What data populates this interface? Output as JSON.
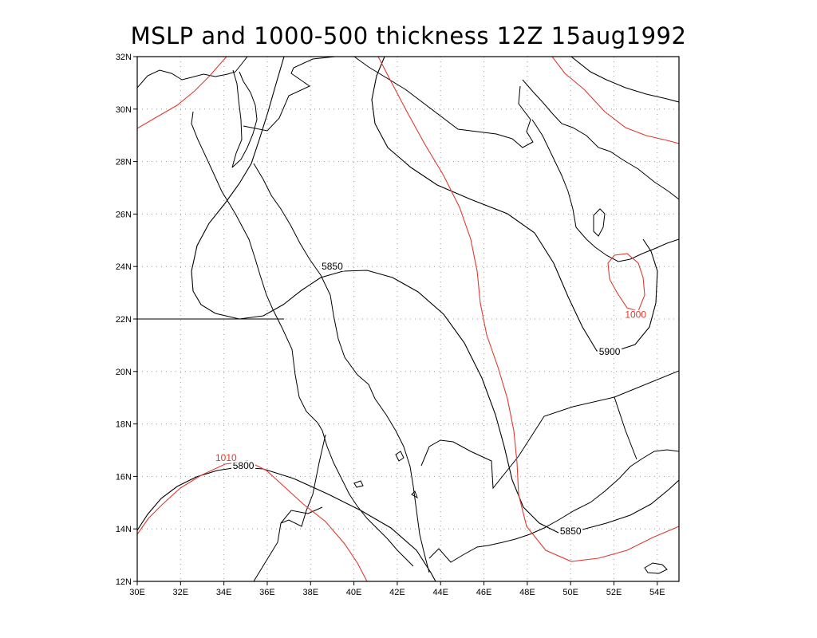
{
  "title": "MSLP and 1000-500 thickness 12Z 15aug1992",
  "map": {
    "lon_range": [
      30,
      55
    ],
    "lat_range": [
      12,
      32
    ],
    "lon_ticks": [
      {
        "v": 30,
        "label": "30E"
      },
      {
        "v": 32,
        "label": "32E"
      },
      {
        "v": 34,
        "label": "34E"
      },
      {
        "v": 36,
        "label": "36E"
      },
      {
        "v": 38,
        "label": "38E"
      },
      {
        "v": 40,
        "label": "40E"
      },
      {
        "v": 42,
        "label": "42E"
      },
      {
        "v": 44,
        "label": "44E"
      },
      {
        "v": 46,
        "label": "46E"
      },
      {
        "v": 48,
        "label": "48E"
      },
      {
        "v": 50,
        "label": "50E"
      },
      {
        "v": 52,
        "label": "52E"
      },
      {
        "v": 54,
        "label": "54E"
      }
    ],
    "lat_ticks": [
      {
        "v": 12,
        "label": "12N"
      },
      {
        "v": 14,
        "label": "14N"
      },
      {
        "v": 16,
        "label": "16N"
      },
      {
        "v": 18,
        "label": "18N"
      },
      {
        "v": 20,
        "label": "20N"
      },
      {
        "v": 22,
        "label": "22N"
      },
      {
        "v": 24,
        "label": "24N"
      },
      {
        "v": 26,
        "label": "26N"
      },
      {
        "v": 28,
        "label": "28N"
      },
      {
        "v": 30,
        "label": "30N"
      },
      {
        "v": 32,
        "label": "32N"
      }
    ],
    "gridlines": true,
    "colors": {
      "thickness": "#000000",
      "mslp": "#e03a2e",
      "coast": "#000000",
      "grid": "#9a9a9a"
    }
  },
  "contour_labels": [
    {
      "id": "thk-5850-a",
      "text": "5850",
      "field": "thickness",
      "lon": 39.0,
      "lat": 23.95
    },
    {
      "id": "thk-5900",
      "text": "5900",
      "field": "thickness",
      "lon": 51.8,
      "lat": 20.7
    },
    {
      "id": "thk-5800",
      "text": "5800",
      "field": "thickness",
      "lon": 34.9,
      "lat": 16.35
    },
    {
      "id": "thk-5850-b",
      "text": "5850",
      "field": "thickness",
      "lon": 50.0,
      "lat": 13.85
    },
    {
      "id": "mslp-1010",
      "text": "1010",
      "field": "mslp",
      "lon": 34.1,
      "lat": 16.65
    },
    {
      "id": "mslp-1000",
      "text": "1000",
      "field": "mslp",
      "lon": 53.0,
      "lat": 22.1
    }
  ]
}
